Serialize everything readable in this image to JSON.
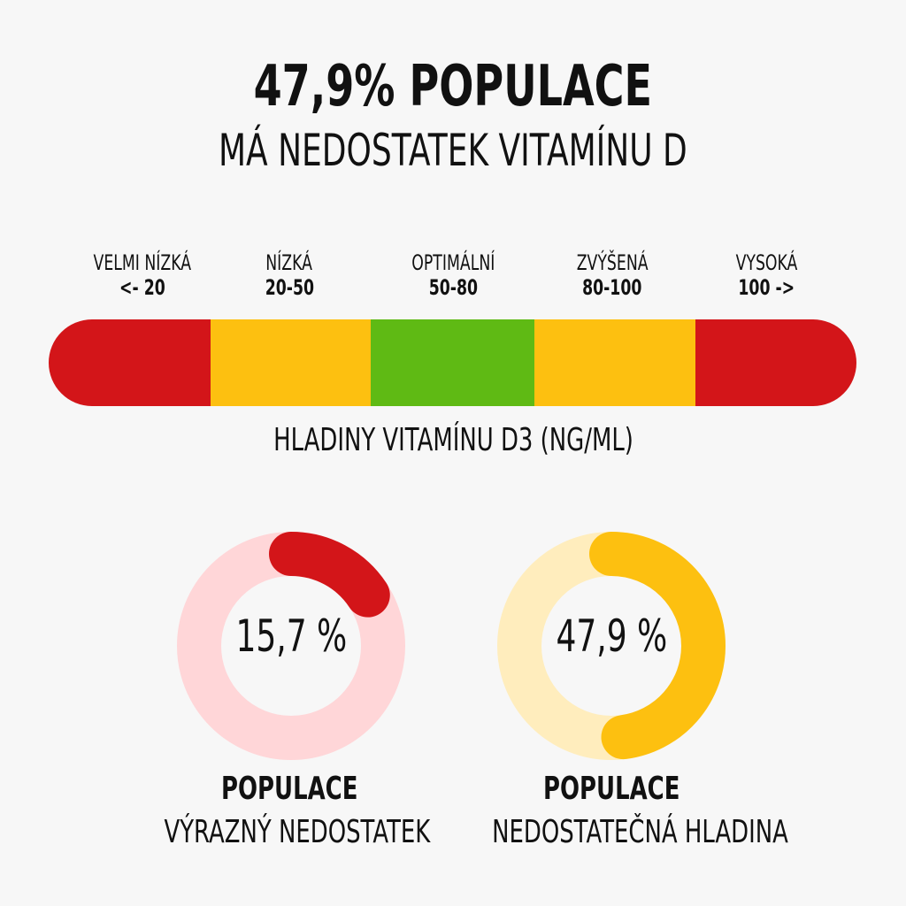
{
  "chart_data": {
    "type": "infographic",
    "title": "47,9% POPULACE",
    "subtitle": "MÁ NEDOSTATEK VITAMÍNU D",
    "scale": {
      "caption": "HLADINY VITAMÍNU D3 (NG/ML)",
      "segments": [
        {
          "name": "VELMI NÍZKÁ",
          "range": "<- 20",
          "color": "#d31519"
        },
        {
          "name": "NÍZKÁ",
          "range": "20-50",
          "color": "#fdc010"
        },
        {
          "name": "OPTIMÁLNÍ",
          "range": "50-80",
          "color": "#5fba14"
        },
        {
          "name": "ZVÝŠENÁ",
          "range": "80-100",
          "color": "#fdc010"
        },
        {
          "name": "VYSOKÁ",
          "range": "100 ->",
          "color": "#d31519"
        }
      ]
    },
    "donuts": [
      {
        "value": 15.7,
        "value_label": "15,7 %",
        "title": "POPULACE",
        "subtitle": "VÝRAZNÝ NEDOSTATEK",
        "color": "#d31519",
        "track_color": "#ffd6d8"
      },
      {
        "value": 47.9,
        "value_label": "47,9 %",
        "title": "POPULACE",
        "subtitle": "NEDOSTATEČNÁ HLADINA",
        "color": "#fdc010",
        "track_color": "#ffedbd"
      }
    ]
  }
}
